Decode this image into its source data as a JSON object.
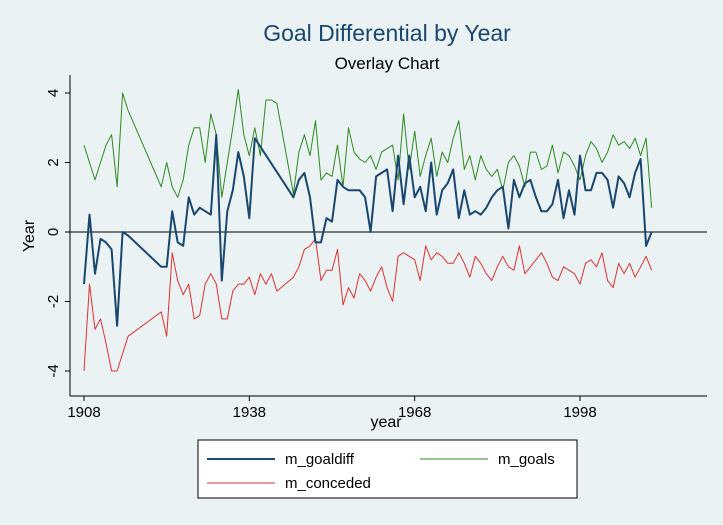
{
  "chart_data": {
    "type": "line",
    "title": "Goal Differential by Year",
    "subtitle": "Overlay Chart",
    "xlabel": "year",
    "ylabel": "Year",
    "xlim": [
      1908,
      2012
    ],
    "ylim": [
      -4.2,
      4.5
    ],
    "x_ticks": [
      1908,
      1938,
      1968,
      1998
    ],
    "y_ticks": [
      -4,
      -2,
      0,
      2,
      4
    ],
    "reference_line": 0,
    "grid": false,
    "legend_position": "bottom",
    "series": [
      {
        "name": "m_goaldiff",
        "color": "#1a476f",
        "stroke_width": 2,
        "x": [
          1908,
          1909,
          1910,
          1911,
          1912,
          1913,
          1914,
          1915,
          1916,
          1922,
          1923,
          1924,
          1925,
          1926,
          1927,
          1928,
          1929,
          1930,
          1931,
          1932,
          1933,
          1934,
          1935,
          1936,
          1937,
          1938,
          1939,
          1946,
          1947,
          1948,
          1949,
          1950,
          1951,
          1952,
          1953,
          1954,
          1955,
          1956,
          1957,
          1958,
          1959,
          1960,
          1961,
          1962,
          1963,
          1964,
          1965,
          1966,
          1967,
          1968,
          1969,
          1970,
          1971,
          1972,
          1973,
          1974,
          1975,
          1976,
          1977,
          1978,
          1979,
          1980,
          1981,
          1982,
          1983,
          1984,
          1985,
          1986,
          1987,
          1988,
          1989,
          1990,
          1991,
          1992,
          1993,
          1994,
          1995,
          1996,
          1997,
          1998,
          1999,
          2000,
          2001,
          2002,
          2003,
          2004,
          2005,
          2006,
          2007,
          2008,
          2009,
          2010,
          2011
        ],
        "values": [
          -1.5,
          0.5,
          -1.2,
          -0.2,
          -0.3,
          -0.5,
          -2.7,
          0,
          -0.1,
          -1.0,
          -1.0,
          0.6,
          -0.3,
          -0.4,
          1.0,
          0.5,
          0.7,
          0.6,
          0.5,
          2.8,
          -1.4,
          0.6,
          1.2,
          2.3,
          1.6,
          0.4,
          2.7,
          1.0,
          1.5,
          1.7,
          1.0,
          -0.3,
          -0.3,
          0.4,
          0.3,
          1.5,
          1.3,
          1.2,
          1.2,
          1.2,
          1.0,
          0,
          1.6,
          1.7,
          1.8,
          0.6,
          2.2,
          0.8,
          2.2,
          1.0,
          1.3,
          0.6,
          2.0,
          0.5,
          1.2,
          1.4,
          1.8,
          0.4,
          1.2,
          0.5,
          0.6,
          0.5,
          0.7,
          1.0,
          1.2,
          1.3,
          0.1,
          1.5,
          1.0,
          1.4,
          1.5,
          1.0,
          0.6,
          0.6,
          0.8,
          1.5,
          0.4,
          1.2,
          0.5,
          2.2,
          1.2,
          1.2,
          1.7,
          1.7,
          1.5,
          0.7,
          1.6,
          1.4,
          1.0,
          1.7,
          2.1,
          -0.4,
          0
        ]
      },
      {
        "name": "m_goals",
        "color": "#2d8a1f",
        "stroke_width": 1,
        "x": [
          1908,
          1910,
          1912,
          1913,
          1914,
          1915,
          1916,
          1922,
          1923,
          1924,
          1925,
          1926,
          1927,
          1928,
          1929,
          1930,
          1931,
          1932,
          1933,
          1934,
          1935,
          1936,
          1937,
          1938,
          1939,
          1940,
          1941,
          1942,
          1943,
          1946,
          1947,
          1948,
          1949,
          1950,
          1951,
          1952,
          1953,
          1954,
          1955,
          1956,
          1957,
          1958,
          1959,
          1960,
          1961,
          1962,
          1963,
          1964,
          1965,
          1966,
          1967,
          1968,
          1969,
          1970,
          1971,
          1972,
          1973,
          1974,
          1975,
          1976,
          1977,
          1978,
          1979,
          1980,
          1981,
          1982,
          1983,
          1984,
          1985,
          1986,
          1987,
          1988,
          1989,
          1990,
          1991,
          1992,
          1993,
          1994,
          1995,
          1996,
          1997,
          1998,
          1999,
          2000,
          2001,
          2002,
          2003,
          2004,
          2005,
          2006,
          2007,
          2008,
          2009,
          2010,
          2011
        ],
        "values": [
          2.5,
          1.5,
          2.5,
          2.8,
          1.3,
          4.0,
          3.5,
          1.3,
          2.0,
          1.3,
          1.0,
          1.5,
          2.5,
          3.0,
          3.0,
          2.0,
          3.4,
          2.8,
          1.0,
          2.0,
          3.0,
          4.1,
          2.8,
          2.2,
          3.0,
          2.2,
          3.8,
          3.8,
          3.7,
          1.1,
          2.3,
          2.8,
          2.2,
          3.2,
          1.5,
          1.7,
          1.6,
          2.5,
          1.3,
          3.0,
          2.3,
          2.1,
          2.0,
          2.2,
          1.8,
          2.3,
          2.4,
          2.5,
          1.5,
          3.4,
          1.8,
          2.9,
          1.6,
          2.2,
          2.7,
          1.6,
          2.3,
          2.0,
          2.7,
          3.2,
          1.8,
          2.2,
          1.5,
          2.2,
          1.8,
          1.6,
          1.8,
          1.2,
          2.0,
          2.2,
          1.9,
          1.3,
          2.3,
          2.3,
          1.8,
          1.9,
          2.5,
          1.7,
          2.3,
          2.2,
          1.9,
          1.5,
          2.2,
          2.6,
          2.4,
          2.0,
          2.3,
          2.8,
          2.5,
          2.6,
          2.4,
          2.7,
          2.2,
          2.7,
          0.7
        ]
      },
      {
        "name": "m_conceded",
        "color": "#e03030",
        "stroke_width": 1,
        "x": [
          1908,
          1909,
          1910,
          1911,
          1912,
          1913,
          1914,
          1915,
          1916,
          1922,
          1923,
          1924,
          1925,
          1926,
          1927,
          1928,
          1929,
          1930,
          1931,
          1932,
          1933,
          1934,
          1935,
          1936,
          1937,
          1938,
          1939,
          1940,
          1941,
          1942,
          1943,
          1946,
          1947,
          1948,
          1949,
          1950,
          1951,
          1952,
          1953,
          1954,
          1955,
          1956,
          1957,
          1958,
          1959,
          1960,
          1961,
          1962,
          1963,
          1964,
          1965,
          1966,
          1967,
          1968,
          1969,
          1970,
          1971,
          1972,
          1973,
          1974,
          1975,
          1976,
          1977,
          1978,
          1979,
          1980,
          1981,
          1982,
          1983,
          1984,
          1985,
          1986,
          1987,
          1988,
          1989,
          1990,
          1991,
          1992,
          1993,
          1994,
          1995,
          1996,
          1997,
          1998,
          1999,
          2000,
          2001,
          2002,
          2003,
          2004,
          2005,
          2006,
          2007,
          2008,
          2009,
          2010,
          2011
        ],
        "values": [
          -4.0,
          -1.5,
          -2.8,
          -2.5,
          -3.2,
          -4.0,
          -4.0,
          -3.5,
          -3.0,
          -2.3,
          -3.0,
          -0.6,
          -1.4,
          -1.8,
          -1.5,
          -2.5,
          -2.4,
          -1.5,
          -1.2,
          -1.5,
          -2.5,
          -2.5,
          -1.7,
          -1.5,
          -1.5,
          -1.3,
          -1.8,
          -1.2,
          -1.5,
          -1.2,
          -1.7,
          -1.3,
          -1.0,
          -0.5,
          -0.4,
          -0.2,
          -1.4,
          -1.1,
          -1.1,
          -0.5,
          -2.1,
          -1.6,
          -1.9,
          -1.2,
          -1.4,
          -1.7,
          -1.3,
          -1.0,
          -1.6,
          -2.0,
          -0.7,
          -0.6,
          -0.7,
          -0.8,
          -1.4,
          -0.4,
          -0.8,
          -0.6,
          -0.7,
          -0.9,
          -0.9,
          -0.6,
          -0.9,
          -1.3,
          -0.7,
          -0.9,
          -1.2,
          -1.4,
          -1.0,
          -0.7,
          -1.0,
          -1.1,
          -0.4,
          -1.2,
          -1.0,
          -0.8,
          -0.6,
          -0.9,
          -1.3,
          -1.4,
          -1.0,
          -1.1,
          -1.2,
          -1.5,
          -0.9,
          -0.8,
          -1.0,
          -0.6,
          -1.4,
          -1.6,
          -0.9,
          -1.2,
          -0.9,
          -1.3,
          -1.0,
          -0.7,
          -1.1
        ]
      }
    ]
  }
}
